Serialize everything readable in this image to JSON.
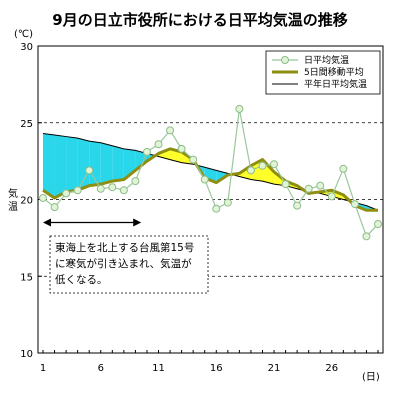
{
  "chart_data": {
    "type": "line",
    "title": "9月の日立市役所における日平均気温の推移",
    "y_unit": "(℃)",
    "ylabel": "気温",
    "x_unit": "(日)",
    "ylim": [
      10,
      30
    ],
    "y_ticks": [
      10,
      15,
      20,
      25,
      30
    ],
    "xlim": [
      1,
      30
    ],
    "x_ticks": [
      1,
      6,
      11,
      16,
      21,
      26
    ],
    "x": [
      1,
      2,
      3,
      4,
      5,
      6,
      7,
      8,
      9,
      10,
      11,
      12,
      13,
      14,
      15,
      16,
      17,
      18,
      19,
      20,
      21,
      22,
      23,
      24,
      25,
      26,
      27,
      28,
      29,
      30
    ],
    "series": [
      {
        "name": "日平均気温",
        "values": [
          20.1,
          19.5,
          20.4,
          20.6,
          21.9,
          20.7,
          20.8,
          20.6,
          21.2,
          23.1,
          23.6,
          24.5,
          23.3,
          22.6,
          21.3,
          19.4,
          19.8,
          25.9,
          21.9,
          22.2,
          22.3,
          21.0,
          19.6,
          20.7,
          20.9,
          20.2,
          22.0,
          19.7,
          17.6,
          18.4
        ],
        "color": "#9ac89a"
      },
      {
        "name": "5日間移動平均",
        "values": [
          20.6,
          20.1,
          20.5,
          20.6,
          20.9,
          21.0,
          21.2,
          21.3,
          21.9,
          22.5,
          23.0,
          23.3,
          23.1,
          22.6,
          21.4,
          21.1,
          21.6,
          21.7,
          22.2,
          22.6,
          21.8,
          21.2,
          20.9,
          20.4,
          20.5,
          20.6,
          20.3,
          19.6,
          19.3,
          19.3
        ],
        "color": "#8e8e10"
      },
      {
        "name": "平年日平均気温",
        "values": [
          24.3,
          24.2,
          24.1,
          24.0,
          23.8,
          23.7,
          23.5,
          23.3,
          23.2,
          23.0,
          22.8,
          22.6,
          22.4,
          22.3,
          22.1,
          21.9,
          21.7,
          21.5,
          21.3,
          21.2,
          21.0,
          20.9,
          20.7,
          20.5,
          20.4,
          20.2,
          20.0,
          19.8,
          19.6,
          19.3
        ],
        "color": "#000000"
      }
    ],
    "fill_below_normal_color": "#29d6ea",
    "fill_above_normal_color": "#ffff29",
    "grid": "dashed",
    "legend_position": "top-right",
    "annotation": {
      "lines": [
        "東海上を北上する台風第15号",
        "に寒気が引き込まれ、気温が",
        "低くなる。"
      ],
      "x_start": 1,
      "x_end": 9.5,
      "y": 18.5
    }
  }
}
